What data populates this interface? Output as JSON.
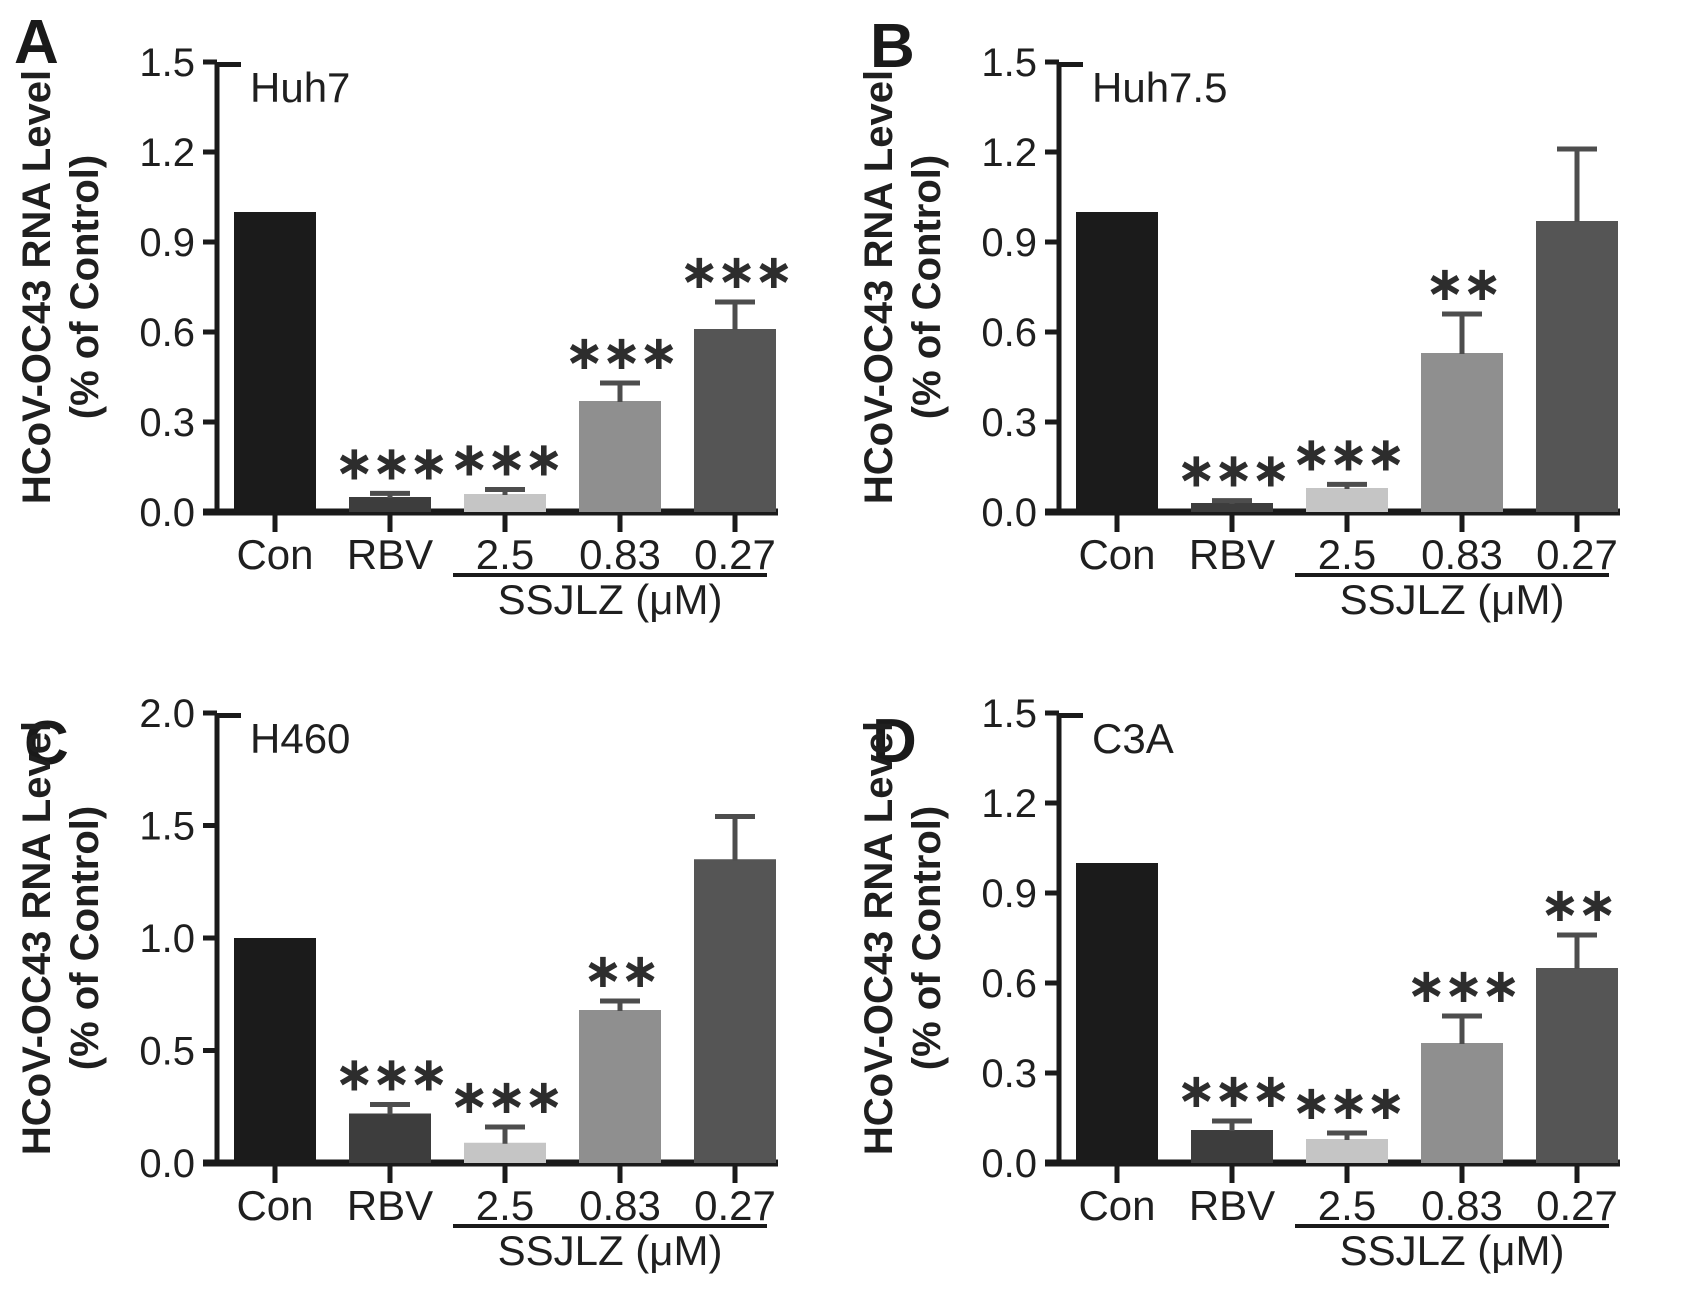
{
  "page": {
    "background": "#ffffff",
    "description": "Four-panel bar figure of HCoV-OC43 RNA levels in different cell lines treated with Con, RBV and SSJLZ dilutions"
  },
  "style": {
    "bar_colors": [
      "#1b1b1b",
      "#3d3d3d",
      "#c5c5c5",
      "#8f8f8f",
      "#555555"
    ],
    "axis_color": "#1a1a1a",
    "error_bar_color": "#4d4d4d",
    "text_color": "#1f1f1f",
    "star_color": "#2d2d2d"
  },
  "chart_data": [
    {
      "type": "bar",
      "panel_letter": "A",
      "title": "Huh7",
      "ylabel": "HCoV-OC43 RNA Level",
      "ylabel2": "(% of Control)",
      "xlabel": "",
      "categories": [
        "Con",
        "RBV",
        "2.5",
        "0.83",
        "0.27"
      ],
      "values": [
        1.0,
        0.05,
        0.06,
        0.37,
        0.61
      ],
      "errors": [
        0,
        0.012,
        0.015,
        0.06,
        0.09
      ],
      "significance": [
        "",
        "***",
        "***",
        "***",
        "***"
      ],
      "ylim": [
        0,
        1.5
      ],
      "yticks": [
        "0.0",
        "0.3",
        "0.6",
        "0.9",
        "1.2",
        "1.5"
      ],
      "group_label": "SSJLZ (μM)",
      "group_span_categories": [
        "2.5",
        "0.83",
        "0.27"
      ],
      "grid": false,
      "legend": "none"
    },
    {
      "type": "bar",
      "panel_letter": "B",
      "title": "Huh7.5",
      "ylabel": "HCoV-OC43 RNA Level",
      "ylabel2": "(% of Control)",
      "xlabel": "",
      "categories": [
        "Con",
        "RBV",
        "2.5",
        "0.83",
        "0.27"
      ],
      "values": [
        1.0,
        0.03,
        0.08,
        0.53,
        0.97
      ],
      "errors": [
        0,
        0.008,
        0.012,
        0.13,
        0.24
      ],
      "significance": [
        "",
        "***",
        "***",
        "**",
        ""
      ],
      "ylim": [
        0,
        1.5
      ],
      "yticks": [
        "0.0",
        "0.3",
        "0.6",
        "0.9",
        "1.2",
        "1.5"
      ],
      "group_label": "SSJLZ (μM)",
      "group_span_categories": [
        "2.5",
        "0.83",
        "0.27"
      ],
      "grid": false,
      "legend": "none"
    },
    {
      "type": "bar",
      "panel_letter": "C",
      "title": "H460",
      "ylabel": "HCoV-OC43 RNA  Level",
      "ylabel2": "(% of Control)",
      "xlabel": "",
      "categories": [
        "Con",
        "RBV",
        "2.5",
        "0.83",
        "0.27"
      ],
      "values": [
        1.0,
        0.22,
        0.09,
        0.68,
        1.35
      ],
      "errors": [
        0,
        0.04,
        0.07,
        0.04,
        0.19
      ],
      "significance": [
        "",
        "***",
        "***",
        "**",
        ""
      ],
      "ylim": [
        0,
        2.0
      ],
      "yticks": [
        "0.0",
        "0.5",
        "1.0",
        "1.5",
        "2.0"
      ],
      "group_label": "SSJLZ (μM)",
      "group_span_categories": [
        "2.5",
        "0.83",
        "0.27"
      ],
      "grid": false,
      "legend": "none"
    },
    {
      "type": "bar",
      "panel_letter": "D",
      "title": "C3A",
      "ylabel": "HCoV-OC43 RNA  Level",
      "ylabel2": "(% of Control)",
      "xlabel": "",
      "categories": [
        "Con",
        "RBV",
        "2.5",
        "0.83",
        "0.27"
      ],
      "values": [
        1.0,
        0.11,
        0.08,
        0.4,
        0.65
      ],
      "errors": [
        0,
        0.03,
        0.02,
        0.09,
        0.11
      ],
      "significance": [
        "",
        "***",
        "***",
        "***",
        "**"
      ],
      "ylim": [
        0,
        1.5
      ],
      "yticks": [
        "0.0",
        "0.3",
        "0.6",
        "0.9",
        "1.2",
        "1.5"
      ],
      "group_label": "SSJLZ (μM)",
      "group_span_categories": [
        "2.5",
        "0.83",
        "0.27"
      ],
      "grid": false,
      "legend": "none"
    }
  ]
}
